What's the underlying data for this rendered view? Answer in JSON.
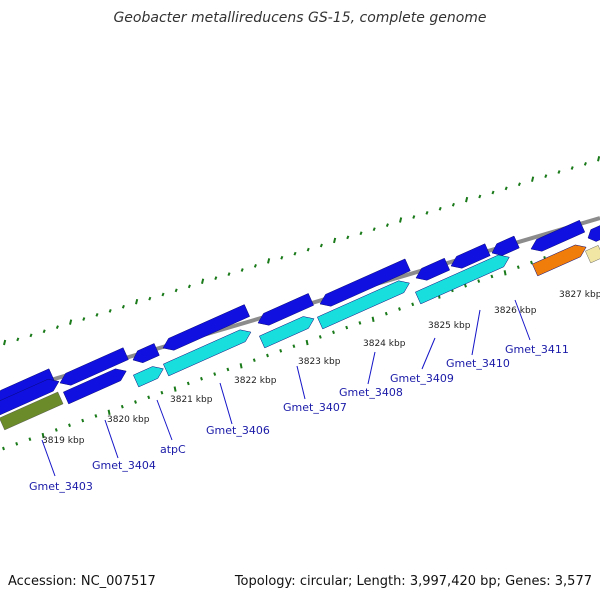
{
  "title": "Geobacter metallireducens GS-15, complete genome",
  "footer": {
    "accession_label": "Accession:",
    "accession": "NC_007517",
    "topology_label": "Topology:",
    "topology": "circular",
    "length_label": "Length:",
    "length": "3,997,420 bp",
    "genes_label": "Genes:",
    "genes": "3,577"
  },
  "colors": {
    "backbone": "#8c8c8c",
    "forward_gene": "#1010e0",
    "reverse_gene": "#19dede",
    "tick": "#1a7a1a",
    "label_line": "#1414c8",
    "gene_label": "#1a1aa8",
    "olive_feature": "#6b8a2a",
    "orange_feature": "#f07c0a",
    "cream_feature": "#f2e6a4"
  },
  "kbp_labels": [
    "3819 kbp",
    "3820 kbp",
    "3821 kbp",
    "3822 kbp",
    "3823 kbp",
    "3824 kbp",
    "3825 kbp",
    "3826 kbp",
    "3827 kbp"
  ],
  "genes_shown": [
    {
      "name": "Gmet_3403"
    },
    {
      "name": "Gmet_3404"
    },
    {
      "name": "atpC"
    },
    {
      "name": "Gmet_3406"
    },
    {
      "name": "Gmet_3407"
    },
    {
      "name": "Gmet_3408"
    },
    {
      "name": "Gmet_3409"
    },
    {
      "name": "Gmet_3410"
    },
    {
      "name": "Gmet_3411"
    }
  ]
}
